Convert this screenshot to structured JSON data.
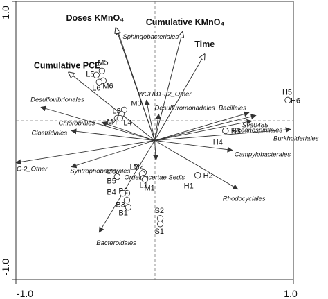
{
  "chart_data": {
    "type": "scatter",
    "title": "",
    "xlim": [
      -1.0,
      1.0
    ],
    "ylim": [
      -1.0,
      1.0
    ],
    "x_tick_labels": [
      "-1.0",
      "1.0"
    ],
    "y_tick_labels": [
      "1.0",
      "-1.0"
    ],
    "origin_dashed_lines": true,
    "env_vectors": [
      {
        "label": "Doses KMnO₄",
        "x": -0.28,
        "y": 0.81
      },
      {
        "label": "Cumulative KMnO₄",
        "x": 0.2,
        "y": 0.78
      },
      {
        "label": "Time",
        "x": 0.36,
        "y": 0.62
      },
      {
        "label": "Cumulative PCE",
        "x": -0.62,
        "y": 0.49
      }
    ],
    "species_vectors": [
      {
        "label": "Sphingobacteriales",
        "x": -0.27,
        "y": 0.8
      },
      {
        "label": "WCHB1-32_Other",
        "x": -0.06,
        "y": 0.29
      },
      {
        "label": "Desulfovibrionales",
        "x": -0.82,
        "y": 0.24
      },
      {
        "label": "Chlorobiales",
        "x": -0.38,
        "y": 0.13
      },
      {
        "label": "Clostridiales",
        "x": -0.6,
        "y": 0.07
      },
      {
        "label": "Desulfuromonadales",
        "x": 0.03,
        "y": 0.19
      },
      {
        "label": "Bacillales",
        "x": 0.68,
        "y": 0.2
      },
      {
        "label": "Sva0485",
        "x": 0.73,
        "y": 0.18
      },
      {
        "label": "Oceanospirillales",
        "x": 0.7,
        "y": 0.14
      },
      {
        "label": "Burkholderiales",
        "x": 0.98,
        "y": 0.08
      },
      {
        "label": "Campylobacterales",
        "x": 0.56,
        "y": -0.07
      },
      {
        "label": "C-2_Other",
        "x": -1.0,
        "y": -0.16
      },
      {
        "label": "Syntrophobacterales",
        "x": -0.6,
        "y": -0.19
      },
      {
        "label": "Order Incertae Sedis",
        "x": 0.01,
        "y": -0.14
      },
      {
        "label": "Rhodocyclales",
        "x": 0.6,
        "y": -0.35
      },
      {
        "label": "Bacteroidales",
        "x": -0.4,
        "y": -0.66
      }
    ],
    "samples": [
      {
        "label": "M5",
        "x": -0.38,
        "y": 0.5
      },
      {
        "label": "L5",
        "x": -0.42,
        "y": 0.47
      },
      {
        "label": "M6",
        "x": -0.37,
        "y": 0.43
      },
      {
        "label": "L6",
        "x": -0.4,
        "y": 0.42
      },
      {
        "label": "M3",
        "x": -0.22,
        "y": 0.22
      },
      {
        "label": "L3",
        "x": -0.24,
        "y": 0.19
      },
      {
        "label": "M4",
        "x": -0.27,
        "y": 0.16
      },
      {
        "label": "L4",
        "x": -0.25,
        "y": 0.16
      },
      {
        "label": "H5",
        "x": 0.96,
        "y": 0.29
      },
      {
        "label": "H6",
        "x": 0.96,
        "y": 0.29
      },
      {
        "label": "H3",
        "x": 0.51,
        "y": 0.07
      },
      {
        "label": "H4",
        "x": 0.51,
        "y": 0.07
      },
      {
        "label": "H2",
        "x": 0.31,
        "y": -0.25
      },
      {
        "label": "H1",
        "x": 0.31,
        "y": -0.25
      },
      {
        "label": "M2",
        "x": -0.08,
        "y": -0.23
      },
      {
        "label": "L2",
        "x": -0.09,
        "y": -0.24
      },
      {
        "label": "L1",
        "x": -0.08,
        "y": -0.27
      },
      {
        "label": "M1",
        "x": -0.07,
        "y": -0.28
      },
      {
        "label": "B6",
        "x": -0.27,
        "y": -0.26
      },
      {
        "label": "B5",
        "x": -0.27,
        "y": -0.26
      },
      {
        "label": "B2",
        "x": -0.2,
        "y": -0.38
      },
      {
        "label": "B4",
        "x": -0.23,
        "y": -0.38
      },
      {
        "label": "B3",
        "x": -0.2,
        "y": -0.43
      },
      {
        "label": "B1",
        "x": -0.19,
        "y": -0.48
      },
      {
        "label": "S2",
        "x": 0.04,
        "y": -0.56
      },
      {
        "label": "S1",
        "x": 0.04,
        "y": -0.6
      }
    ]
  }
}
